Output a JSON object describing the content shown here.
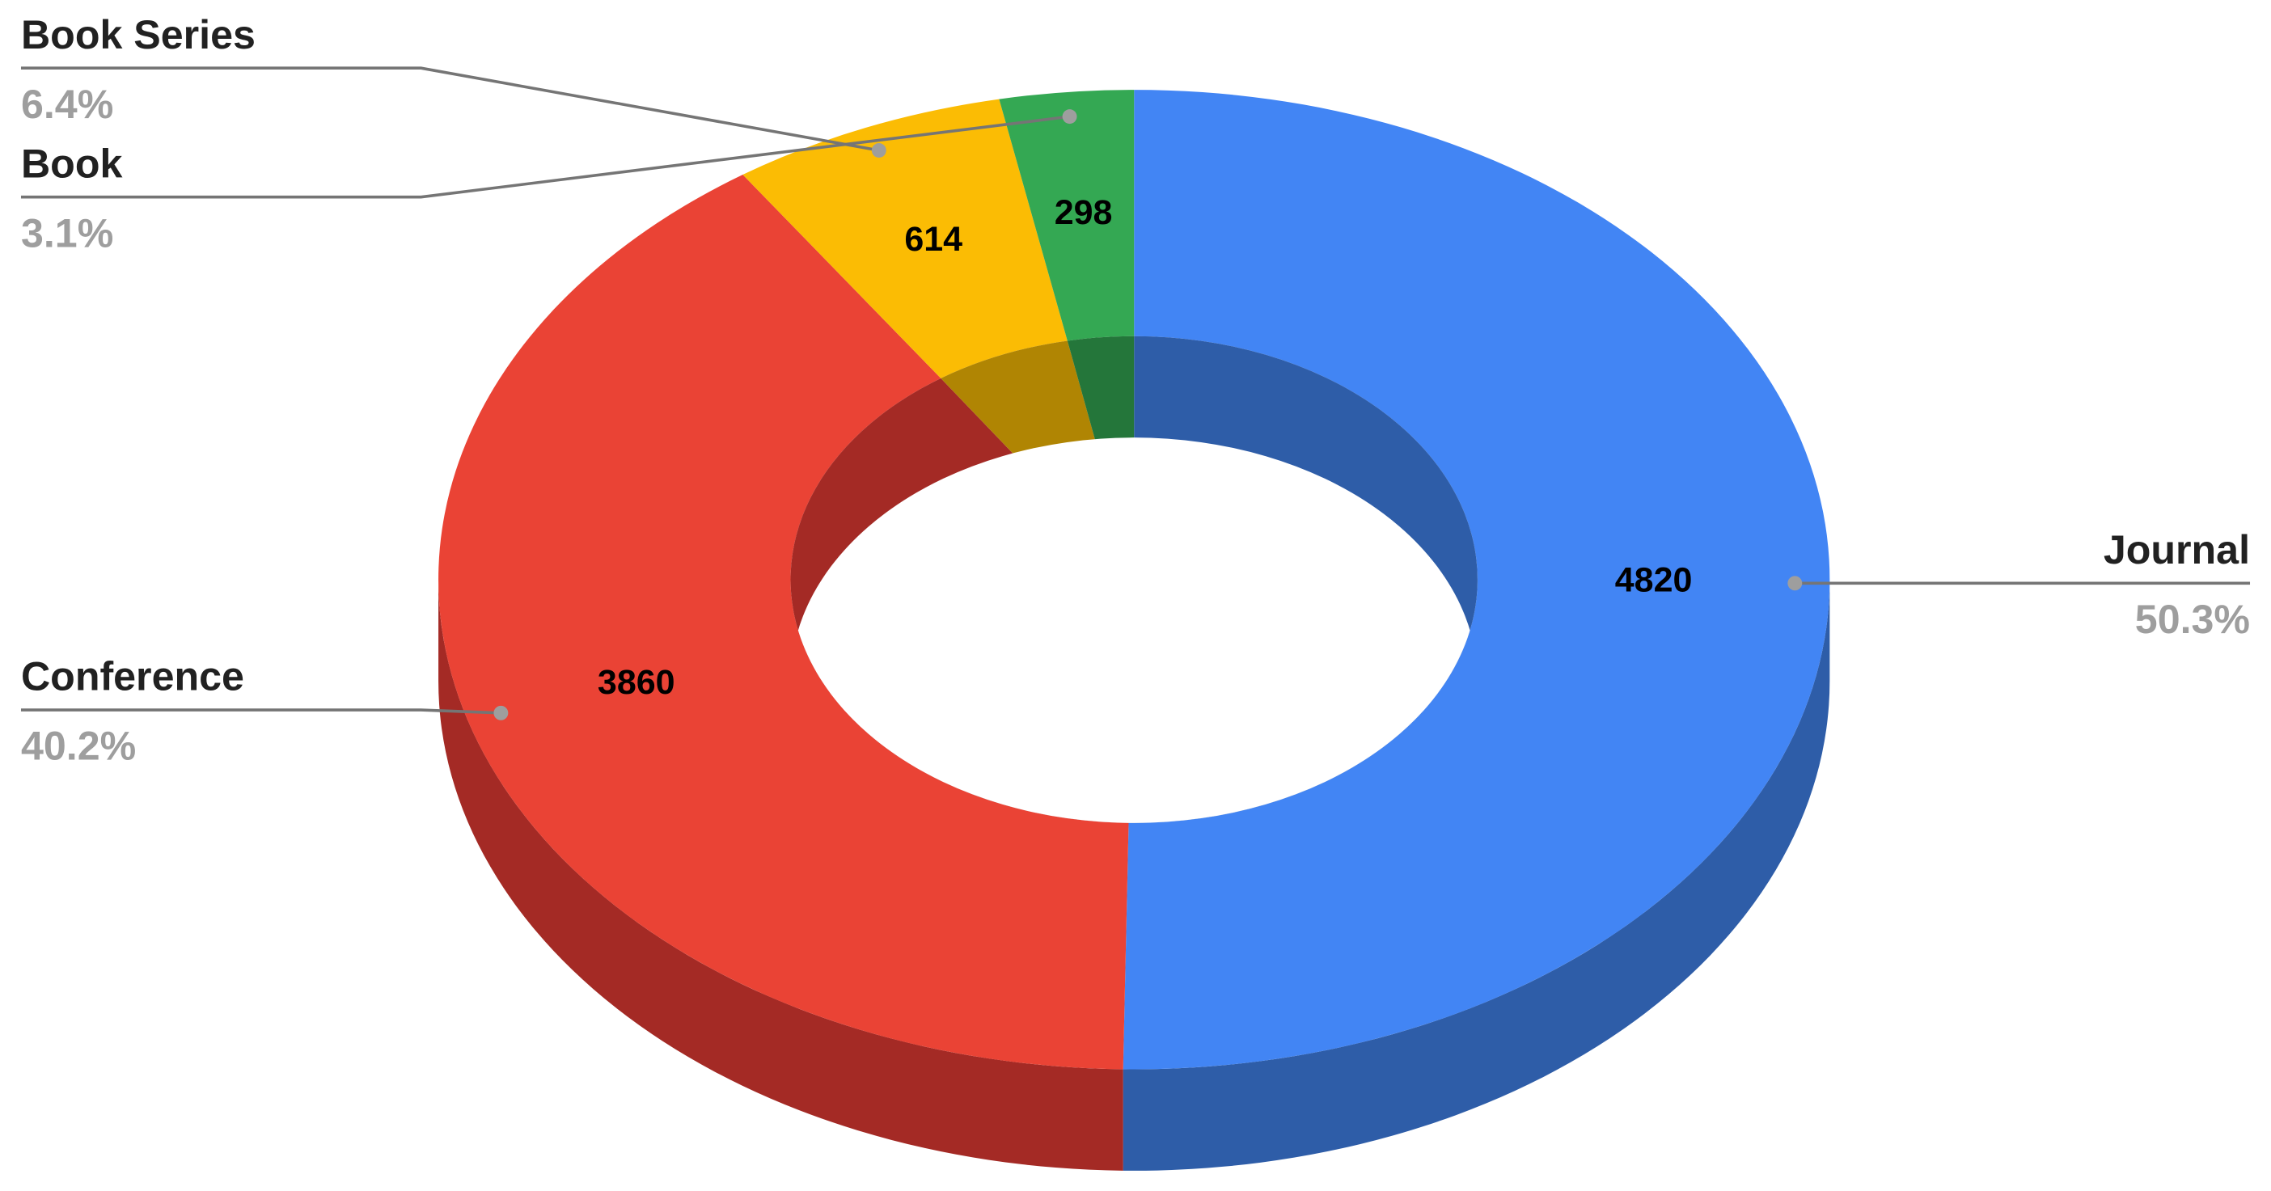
{
  "chart_data": {
    "type": "donut3d",
    "categories": [
      "Journal",
      "Conference",
      "Book Series",
      "Book"
    ],
    "values": [
      4820,
      3860,
      614,
      298
    ],
    "percent_labels": [
      "50.3%",
      "40.2%",
      "6.4%",
      "3.1%"
    ],
    "colors": [
      "#4285f4",
      "#ea4335",
      "#fbbc04",
      "#34a853"
    ],
    "shade_colors": [
      "#2e5da8",
      "#a42a25",
      "#b08503",
      "#24763a"
    ]
  }
}
